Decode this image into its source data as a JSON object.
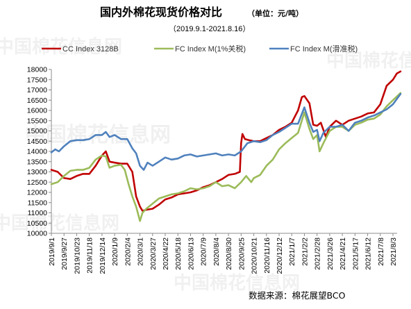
{
  "chart_data": {
    "type": "line",
    "title": "国内外棉花现货价格对比",
    "unit_note": "（单位：元/吨）",
    "subtitle": "（2019.9.1-2021.8.16）",
    "source": "数据来源：棉花展望BCO",
    "watermark": "中国棉花信息网",
    "grid": false,
    "legend_position": "top",
    "y_axis": {
      "min": 10000,
      "max": 18000,
      "step": 500
    },
    "x_axis": {
      "ticks": [
        "2019/9/1",
        "2019/9/27",
        "2019/10/23",
        "2019/11/18",
        "2019/12/14",
        "2020/1/9",
        "2020/2/4",
        "2020/3/1",
        "2020/3/27",
        "2020/4/22",
        "2020/5/18",
        "2020/6/13",
        "2020/7/9",
        "2020/8/4",
        "2020/8/30",
        "2020/9/25",
        "2020/10/21",
        "2020/11/16",
        "2020/12/12",
        "2021/1/7",
        "2021/2/2",
        "2021/2/28",
        "2021/3/26",
        "2021/4/21",
        "2021/5/17",
        "2021/6/12",
        "2021/7/8",
        "2021/8/3"
      ]
    },
    "series": [
      {
        "name": "CC Index 3128B",
        "color": "#c00000",
        "points": [
          [
            0,
            13100
          ],
          [
            0.5,
            13000
          ],
          [
            1,
            12700
          ],
          [
            1.5,
            12650
          ],
          [
            2,
            12800
          ],
          [
            2.5,
            12900
          ],
          [
            3,
            12900
          ],
          [
            3.5,
            13300
          ],
          [
            4,
            13800
          ],
          [
            4.3,
            14000
          ],
          [
            4.6,
            13500
          ],
          [
            5,
            13450
          ],
          [
            5.5,
            13400
          ],
          [
            6,
            13400
          ],
          [
            6.4,
            13000
          ],
          [
            6.7,
            11800
          ],
          [
            7,
            11300
          ],
          [
            7.2,
            11100
          ],
          [
            7.5,
            11150
          ],
          [
            8,
            11200
          ],
          [
            8.5,
            11400
          ],
          [
            9,
            11650
          ],
          [
            9.5,
            11750
          ],
          [
            10,
            11900
          ],
          [
            10.5,
            11950
          ],
          [
            11,
            12000
          ],
          [
            11.5,
            12100
          ],
          [
            12,
            12250
          ],
          [
            12.5,
            12350
          ],
          [
            13,
            12500
          ],
          [
            13.5,
            12650
          ],
          [
            14,
            12850
          ],
          [
            14.5,
            12900
          ],
          [
            14.9,
            13000
          ],
          [
            15,
            14400
          ],
          [
            15.1,
            14850
          ],
          [
            15.3,
            14600
          ],
          [
            15.6,
            14550
          ],
          [
            16,
            14500
          ],
          [
            16.5,
            14500
          ],
          [
            17,
            14650
          ],
          [
            17.5,
            14800
          ],
          [
            18,
            15050
          ],
          [
            18.5,
            15200
          ],
          [
            19,
            15400
          ],
          [
            19.5,
            16000
          ],
          [
            19.8,
            16650
          ],
          [
            20,
            16700
          ],
          [
            20.4,
            16350
          ],
          [
            20.7,
            15300
          ],
          [
            21,
            15250
          ],
          [
            21.3,
            15400
          ],
          [
            21.7,
            14700
          ],
          [
            22,
            15200
          ],
          [
            22.5,
            15500
          ],
          [
            23,
            15300
          ],
          [
            23.5,
            15500
          ],
          [
            24,
            15600
          ],
          [
            24.5,
            15700
          ],
          [
            25,
            15850
          ],
          [
            25.5,
            15900
          ],
          [
            26,
            16300
          ],
          [
            26.5,
            17200
          ],
          [
            27,
            17500
          ],
          [
            27.3,
            17800
          ],
          [
            27.6,
            17900
          ]
        ]
      },
      {
        "name": "FC Index M(1%关税)",
        "color": "#9bbb59",
        "points": [
          [
            0,
            12400
          ],
          [
            0.5,
            12500
          ],
          [
            1,
            12800
          ],
          [
            1.5,
            13050
          ],
          [
            2,
            13100
          ],
          [
            2.5,
            13100
          ],
          [
            3,
            13200
          ],
          [
            3.5,
            13600
          ],
          [
            4,
            13800
          ],
          [
            4.3,
            13750
          ],
          [
            4.6,
            13200
          ],
          [
            5,
            13300
          ],
          [
            5.5,
            13350
          ],
          [
            5.8,
            13100
          ],
          [
            6.1,
            12400
          ],
          [
            6.4,
            11800
          ],
          [
            6.7,
            11300
          ],
          [
            7,
            10600
          ],
          [
            7.2,
            11000
          ],
          [
            7.5,
            11200
          ],
          [
            8,
            11450
          ],
          [
            8.5,
            11700
          ],
          [
            9,
            11800
          ],
          [
            9.5,
            11900
          ],
          [
            10,
            11950
          ],
          [
            10.5,
            12050
          ],
          [
            11,
            12200
          ],
          [
            11.5,
            12150
          ],
          [
            12,
            12200
          ],
          [
            12.5,
            12300
          ],
          [
            13,
            12500
          ],
          [
            13.5,
            12300
          ],
          [
            14,
            12350
          ],
          [
            14.5,
            12200
          ],
          [
            15,
            12500
          ],
          [
            15.4,
            12800
          ],
          [
            15.8,
            12500
          ],
          [
            16,
            12700
          ],
          [
            16.5,
            12850
          ],
          [
            17,
            13300
          ],
          [
            17.5,
            13600
          ],
          [
            18,
            14100
          ],
          [
            18.5,
            14400
          ],
          [
            19,
            14650
          ],
          [
            19.5,
            14900
          ],
          [
            20,
            15900
          ],
          [
            20.4,
            15100
          ],
          [
            20.7,
            14600
          ],
          [
            21,
            14800
          ],
          [
            21.2,
            14000
          ],
          [
            21.5,
            14400
          ],
          [
            22,
            15000
          ],
          [
            22.5,
            15200
          ],
          [
            23,
            15200
          ],
          [
            23.5,
            15000
          ],
          [
            24,
            15300
          ],
          [
            24.5,
            15400
          ],
          [
            25,
            15550
          ],
          [
            25.5,
            15600
          ],
          [
            26,
            15800
          ],
          [
            26.5,
            16200
          ],
          [
            27,
            16500
          ],
          [
            27.6,
            16850
          ]
        ]
      },
      {
        "name": "FC Index M(滑准税)",
        "color": "#4f81bd",
        "points": [
          [
            0,
            13950
          ],
          [
            0.3,
            14100
          ],
          [
            0.6,
            14000
          ],
          [
            1,
            14250
          ],
          [
            1.5,
            14500
          ],
          [
            2,
            14550
          ],
          [
            2.5,
            14550
          ],
          [
            3,
            14600
          ],
          [
            3.5,
            14800
          ],
          [
            4,
            14800
          ],
          [
            4.3,
            14950
          ],
          [
            4.6,
            14700
          ],
          [
            5,
            14800
          ],
          [
            5.5,
            14600
          ],
          [
            6,
            14600
          ],
          [
            6.4,
            14150
          ],
          [
            6.7,
            13900
          ],
          [
            7,
            13300
          ],
          [
            7.3,
            13100
          ],
          [
            7.6,
            13450
          ],
          [
            8,
            13300
          ],
          [
            8.5,
            13500
          ],
          [
            9,
            13700
          ],
          [
            9.5,
            13600
          ],
          [
            10,
            13650
          ],
          [
            10.5,
            13800
          ],
          [
            11,
            13850
          ],
          [
            11.5,
            13750
          ],
          [
            12,
            13800
          ],
          [
            12.5,
            13850
          ],
          [
            13,
            13900
          ],
          [
            13.5,
            13800
          ],
          [
            14,
            13850
          ],
          [
            14.5,
            13800
          ],
          [
            15,
            14000
          ],
          [
            15.5,
            14400
          ],
          [
            16,
            14500
          ],
          [
            16.5,
            14450
          ],
          [
            17,
            14550
          ],
          [
            17.5,
            14800
          ],
          [
            18,
            14950
          ],
          [
            18.5,
            15150
          ],
          [
            19,
            15350
          ],
          [
            19.5,
            15350
          ],
          [
            20,
            16150
          ],
          [
            20.4,
            15400
          ],
          [
            20.7,
            14950
          ],
          [
            21,
            15050
          ],
          [
            21.2,
            14500
          ],
          [
            21.5,
            14900
          ],
          [
            22,
            15200
          ],
          [
            22.5,
            15200
          ],
          [
            23,
            15300
          ],
          [
            23.5,
            15000
          ],
          [
            24,
            15400
          ],
          [
            24.5,
            15500
          ],
          [
            25,
            15650
          ],
          [
            25.5,
            15750
          ],
          [
            26,
            15900
          ],
          [
            26.5,
            16050
          ],
          [
            27,
            16300
          ],
          [
            27.6,
            16800
          ]
        ]
      }
    ]
  }
}
